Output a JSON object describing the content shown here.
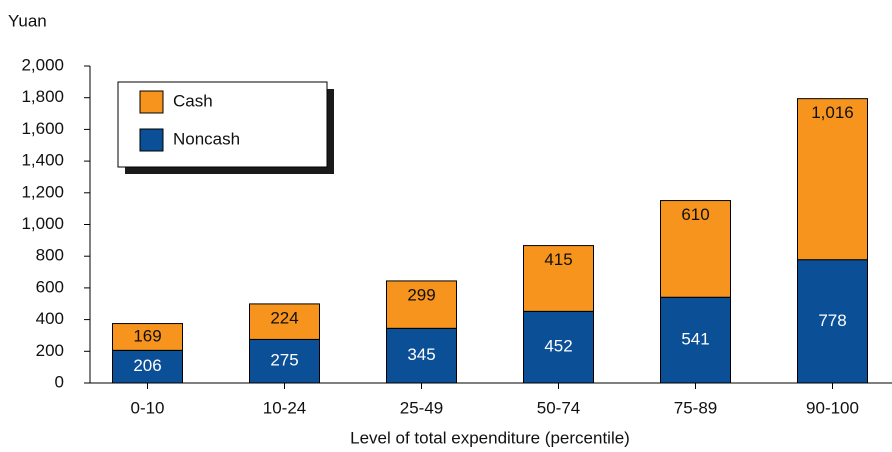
{
  "chart_data": {
    "type": "stacked_bar",
    "y_label": "Yuan",
    "x_label": "Level of total expenditure (percentile)",
    "categories": [
      "0-10",
      "10-24",
      "25-49",
      "50-74",
      "75-89",
      "90-100"
    ],
    "series": [
      {
        "name": "Noncash",
        "color": "#0b4f97",
        "values": [
          206,
          275,
          345,
          452,
          541,
          778
        ]
      },
      {
        "name": "Cash",
        "color": "#f7941d",
        "values": [
          169,
          224,
          299,
          415,
          610,
          1016
        ],
        "value_labels": [
          "169",
          "224",
          "299",
          "415",
          "610",
          "1,016"
        ]
      }
    ],
    "ylim": [
      0,
      2000
    ],
    "yticks": [
      0,
      200,
      400,
      600,
      800,
      {
        "value": 1000,
        "label": "1,000"
      },
      {
        "value": 1200,
        "label": "1,200"
      },
      {
        "value": 1400,
        "label": "1,400"
      },
      {
        "value": 1600,
        "label": "1,600"
      },
      {
        "value": 1800,
        "label": "1,800"
      },
      {
        "value": 2000,
        "label": "2,000"
      }
    ],
    "grid": false,
    "legend": "upper left"
  }
}
